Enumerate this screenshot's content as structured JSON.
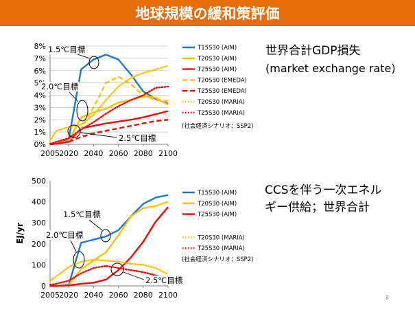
{
  "slide": {
    "title": "地球規模の緩和策評価",
    "page_number": "8",
    "title_bg": "#E46C0A"
  },
  "chart_data": [
    {
      "type": "line",
      "title": "",
      "side_title_lines": [
        "世界合計GDP損失",
        "(market exchange rate)"
      ],
      "note": "(社会経済シナリオ：SSP2)",
      "ylabel": "",
      "xlabel": "",
      "y_format": "percent",
      "x_ticks": [
        2005,
        2020,
        2040,
        2060,
        2080,
        2100
      ],
      "y_ticks": [
        0,
        1,
        2,
        3,
        4,
        5,
        6,
        7,
        8
      ],
      "xlim": [
        2005,
        2100
      ],
      "ylim": [
        0,
        8
      ],
      "grid": true,
      "legend_position": "right",
      "series": [
        {
          "name": "T15S30 (AIM)",
          "color": "#1F77C8",
          "style": "solid",
          "x": [
            2005,
            2010,
            2020,
            2030,
            2040,
            2050,
            2060,
            2070,
            2080,
            2090,
            2100
          ],
          "y": [
            0,
            0.05,
            0.4,
            6.1,
            6.9,
            7.3,
            6.9,
            5.7,
            4.3,
            3.7,
            3.3
          ]
        },
        {
          "name": "T20S30 (AIM)",
          "color": "#FFC000",
          "style": "solid",
          "x": [
            2005,
            2010,
            2020,
            2030,
            2040,
            2050,
            2060,
            2070,
            2080,
            2090,
            2100
          ],
          "y": [
            0,
            0.05,
            0.3,
            2.2,
            2.6,
            2.9,
            3.4,
            3.6,
            3.9,
            3.8,
            3.2
          ]
        },
        {
          "name": "T25S30 (AIM)",
          "color": "#FF0000",
          "style": "solid",
          "x": [
            2005,
            2010,
            2020,
            2030,
            2040,
            2050,
            2060,
            2070,
            2080,
            2090,
            2100
          ],
          "y": [
            0,
            0.05,
            0.2,
            1.3,
            1.5,
            1.7,
            1.85,
            2.0,
            2.2,
            2.45,
            2.7
          ]
        },
        {
          "name": "T20S30 (EMEDA)",
          "color": "#FFC000",
          "style": "dashed",
          "x": [
            2020,
            2030,
            2040,
            2050,
            2060,
            2070,
            2080,
            2090,
            2100
          ],
          "y": [
            0.3,
            1.3,
            3.0,
            5.0,
            5.5,
            4.9,
            4.0,
            3.6,
            3.5
          ]
        },
        {
          "name": "T25S30 (EMEDA)",
          "color": "#FF0000",
          "style": "dashed",
          "x": [
            2020,
            2030,
            2040,
            2050,
            2060,
            2070,
            2080,
            2090,
            2100
          ],
          "y": [
            0.2,
            0.6,
            0.9,
            1.1,
            1.3,
            1.5,
            1.7,
            1.9,
            2.0
          ]
        },
        {
          "name": "T20S30 (MARIA)",
          "color": "#FFC000",
          "style": "dotted",
          "x": [
            2005,
            2010,
            2020,
            2030,
            2040,
            2050,
            2060,
            2070,
            2080,
            2090,
            2100
          ],
          "y": [
            0.3,
            1.1,
            1.4,
            1.6,
            2.4,
            3.6,
            4.7,
            5.4,
            5.8,
            6.1,
            6.4
          ]
        },
        {
          "name": "T25S30 (MARIA)",
          "color": "#FF0000",
          "style": "dotted",
          "x": [
            2005,
            2010,
            2020,
            2030,
            2040,
            2050,
            2060,
            2070,
            2080,
            2090,
            2100
          ],
          "y": [
            0.05,
            0.2,
            0.5,
            1.2,
            1.8,
            2.5,
            3.1,
            3.6,
            4.0,
            4.6,
            4.7
          ]
        }
      ],
      "annotations": [
        {
          "label": "1.5℃目標"
        },
        {
          "label": "2.0℃目標"
        },
        {
          "label": "2.5℃目標"
        }
      ]
    },
    {
      "type": "line",
      "title": "",
      "side_title_lines": [
        "CCSを伴う一次エネル",
        "ギー供給；世界合計"
      ],
      "note": "(社会経済シナリオ：SSP2)",
      "ylabel": "EJ/yr",
      "xlabel": "",
      "y_format": "plain",
      "x_ticks": [
        2005,
        2020,
        2040,
        2060,
        2080,
        2100
      ],
      "y_ticks": [
        0,
        100,
        200,
        300,
        400,
        500
      ],
      "xlim": [
        2005,
        2100
      ],
      "ylim": [
        0,
        500
      ],
      "grid": false,
      "legend_position": "right",
      "series": [
        {
          "name": "T15S30 (AIM)",
          "color": "#1F77C8",
          "style": "solid",
          "x": [
            2005,
            2010,
            2020,
            2030,
            2040,
            2050,
            2060,
            2070,
            2080,
            2090,
            2100
          ],
          "y": [
            0,
            0,
            5,
            205,
            220,
            235,
            265,
            330,
            390,
            420,
            432
          ]
        },
        {
          "name": "T20S30 (AIM)",
          "color": "#FFC000",
          "style": "solid",
          "x": [
            2005,
            2010,
            2020,
            2030,
            2040,
            2050,
            2060,
            2070,
            2080,
            2090,
            2100
          ],
          "y": [
            0,
            0,
            3,
            80,
            120,
            160,
            240,
            330,
            370,
            380,
            400
          ]
        },
        {
          "name": "T25S30 (AIM)",
          "color": "#FF0000",
          "style": "solid",
          "x": [
            2005,
            2010,
            2020,
            2030,
            2040,
            2050,
            2060,
            2070,
            2080,
            2090,
            2100
          ],
          "y": [
            0,
            0,
            2,
            10,
            15,
            30,
            75,
            135,
            210,
            305,
            375
          ]
        },
        {
          "name": "T20S30 (MARIA)",
          "color": "#FFC000",
          "style": "dotted",
          "x": [
            2005,
            2010,
            2020,
            2030,
            2040,
            2050,
            2060,
            2070,
            2080,
            2090,
            2100
          ],
          "y": [
            25,
            45,
            90,
            115,
            125,
            120,
            115,
            105,
            100,
            85,
            55
          ]
        },
        {
          "name": "T25S30 (MARIA)",
          "color": "#FF0000",
          "style": "dotted",
          "x": [
            2005,
            2010,
            2020,
            2030,
            2040,
            2050,
            2060,
            2070,
            2080,
            2090,
            2100
          ],
          "y": [
            5,
            10,
            25,
            60,
            85,
            95,
            85,
            75,
            65,
            50,
            35
          ]
        }
      ],
      "annotations": [
        {
          "label": "1.5℃目標"
        },
        {
          "label": "2.0℃目標"
        },
        {
          "label": "2.5℃目標"
        }
      ]
    }
  ]
}
